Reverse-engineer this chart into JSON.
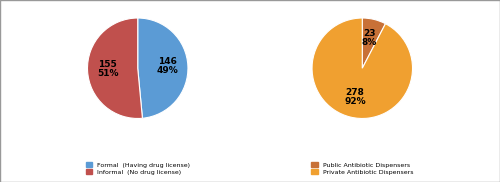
{
  "chart1": {
    "values": [
      146,
      155
    ],
    "colors": [
      "#5b9bd5",
      "#c0504d"
    ],
    "counts": [
      "146",
      "155"
    ],
    "pcts": [
      "49%",
      "51%"
    ],
    "startangle": 90,
    "counterclock": false,
    "legend": [
      "Formal  (Having drug license)",
      "Informal  (No drug license)"
    ]
  },
  "chart2": {
    "values": [
      23,
      278
    ],
    "colors": [
      "#c87137",
      "#f0a030"
    ],
    "counts": [
      "23",
      "278"
    ],
    "pcts": [
      "8%",
      "92%"
    ],
    "startangle": 90,
    "counterclock": false,
    "legend": [
      "Public Antibiotic Dispensers",
      "Private Antibiotic Dispensers"
    ]
  },
  "background_color": "#ffffff"
}
